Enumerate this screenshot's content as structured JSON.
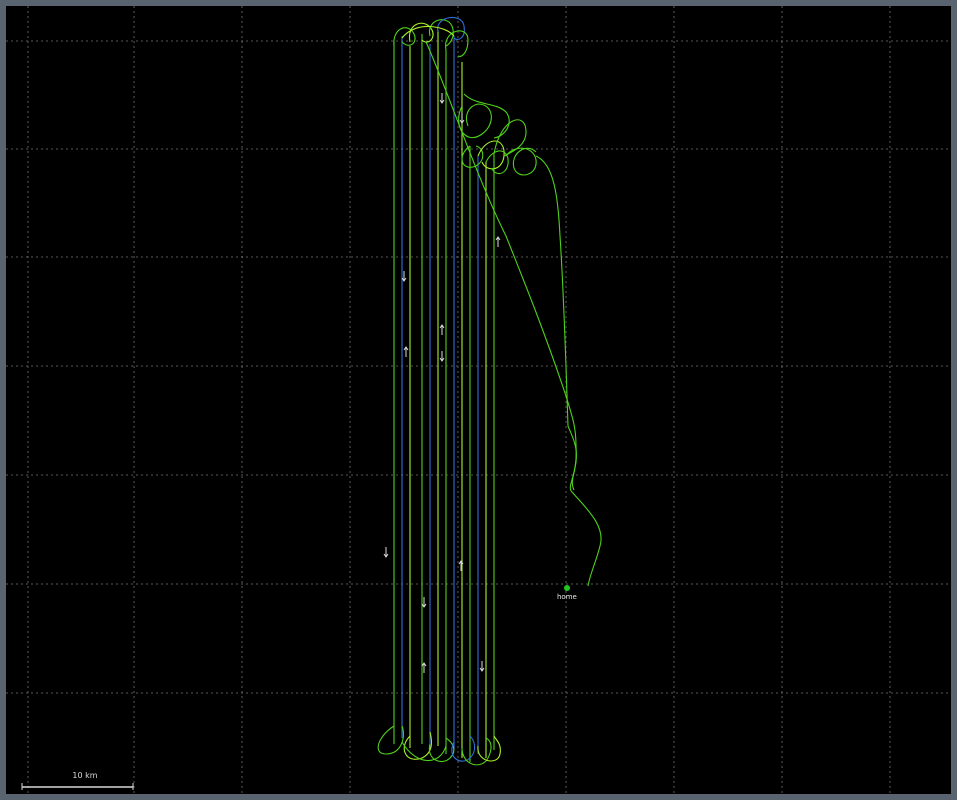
{
  "map": {
    "colors": {
      "background": "#000000",
      "grid": "#9a9a9a",
      "track_green": "#4fd11c",
      "track_blue": "#2f6fd6",
      "track_lime": "#a9f02a",
      "home_marker": "#22c622",
      "arrow": "#dcdcdc"
    },
    "home_label": "home",
    "scale_label": "10 km",
    "arrow_icon": "direction-arrow-icon"
  }
}
